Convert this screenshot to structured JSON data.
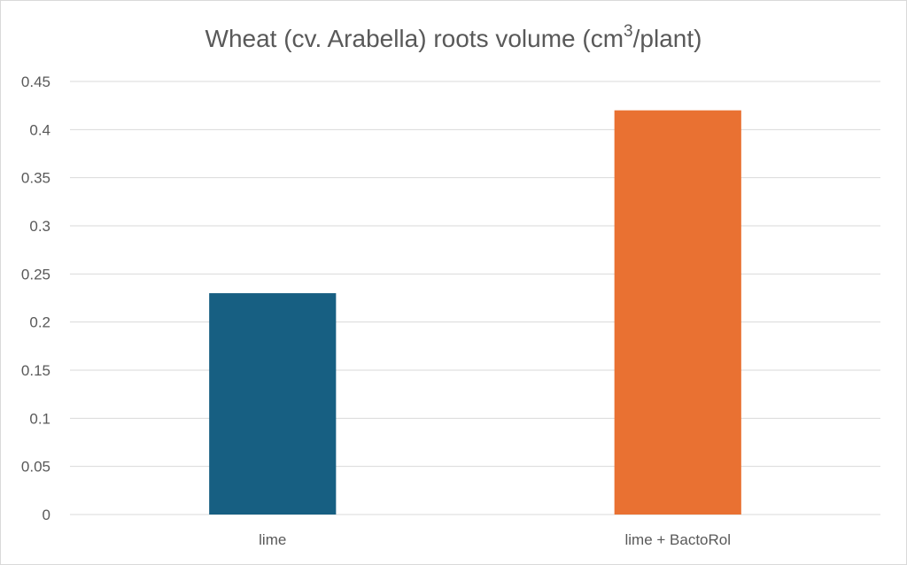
{
  "chart_data": {
    "type": "bar",
    "title": {
      "main": "Wheat (cv. Arabella) roots volume (cm",
      "superscript": "3",
      "suffix": "/plant)"
    },
    "categories": [
      "lime",
      "lime + BactoRol"
    ],
    "values": [
      0.23,
      0.42
    ],
    "colors": [
      "#175f82",
      "#e97132"
    ],
    "ylim": [
      0,
      0.45
    ],
    "yticks": [
      "0",
      "0.05",
      "0.1",
      "0.15",
      "0.2",
      "0.25",
      "0.3",
      "0.35",
      "0.4",
      "0.45"
    ],
    "xlabel": "",
    "ylabel": "",
    "grid": true,
    "legend": "none"
  }
}
